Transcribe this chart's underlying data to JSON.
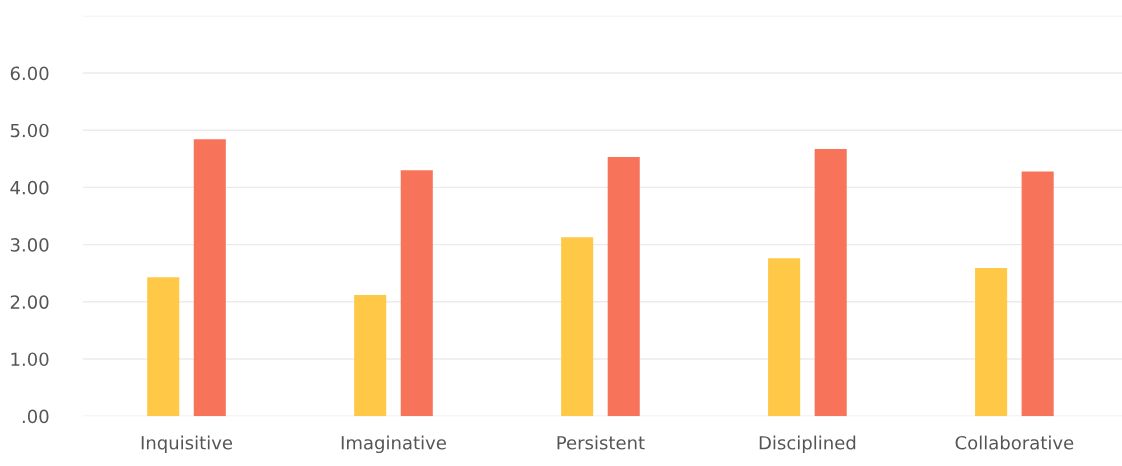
{
  "chart_data": {
    "type": "bar",
    "categories": [
      "Inquisitive",
      "Imaginative",
      "Persistent",
      "Disciplined",
      "Collaborative"
    ],
    "series": [
      {
        "color": "#ffc947",
        "values": [
          2.43,
          2.12,
          3.13,
          2.76,
          2.59
        ]
      },
      {
        "color": "#f7745a",
        "values": [
          4.84,
          4.3,
          4.53,
          4.67,
          4.28
        ]
      }
    ],
    "ylim": [
      0,
      7
    ],
    "yticks": [
      {
        "value": 0,
        "label": ".00"
      },
      {
        "value": 1,
        "label": "1.00"
      },
      {
        "value": 2,
        "label": "2.00"
      },
      {
        "value": 3,
        "label": "3.00"
      },
      {
        "value": 4,
        "label": "4.00"
      },
      {
        "value": 5,
        "label": "5.00"
      },
      {
        "value": 6,
        "label": "6.00"
      },
      {
        "value": 7,
        "label": null
      }
    ],
    "grid": "y"
  }
}
